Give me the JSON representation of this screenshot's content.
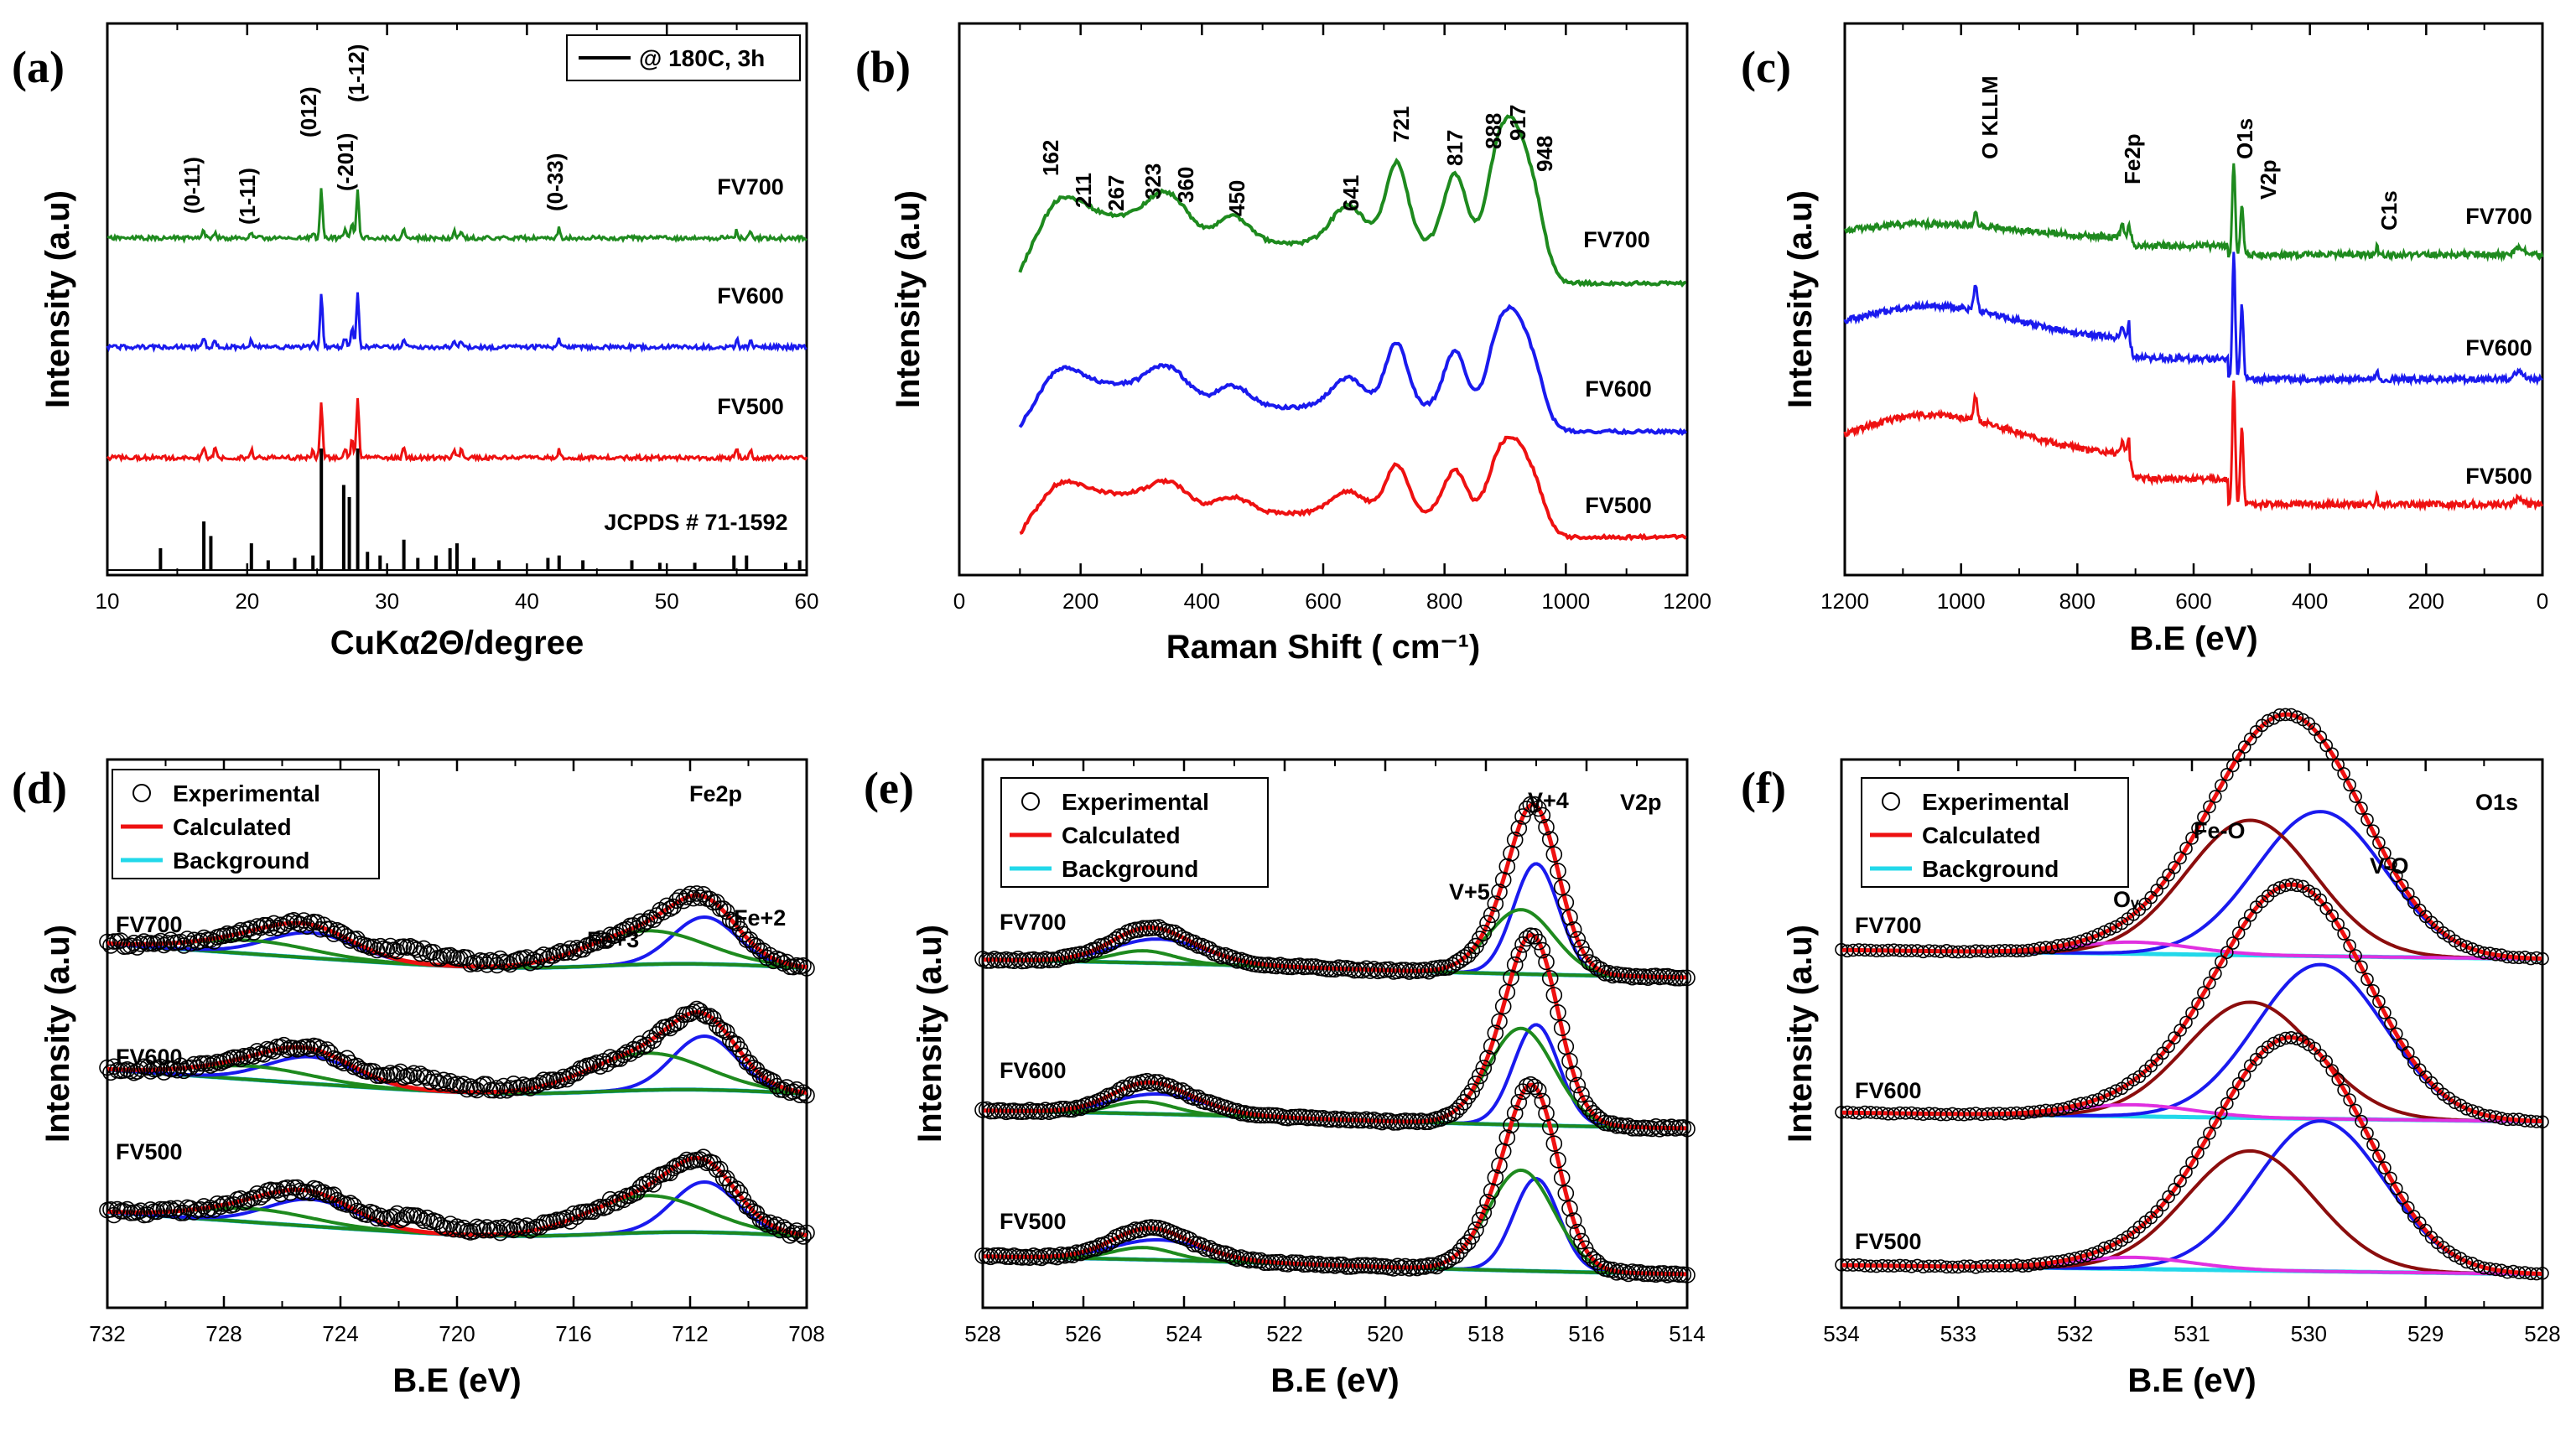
{
  "colors": {
    "FV700": "#1e8a1e",
    "FV600": "#1a1aee",
    "FV500": "#ee1111",
    "ref": "#000000",
    "experimental": "#000000",
    "calculated": "#ee1111",
    "background": "#22d8ea",
    "peakA": "#1a1aee",
    "peakB": "#1e8a1e",
    "peakC": "#8b0d0d",
    "peakD": "#e030e0"
  },
  "chart_data": [
    {
      "panel": "(a)",
      "type": "line",
      "xlabel": "CuKα2Θ/degree",
      "ylabel": "Intensity (a.u)",
      "xlim": [
        10,
        60
      ],
      "xticks": [
        10,
        20,
        30,
        40,
        50,
        60
      ],
      "legend": {
        "label": "@ 180C, 3h",
        "position": "top-right"
      },
      "series": [
        {
          "name": "FV700",
          "peaks": [
            [
              16.9,
              6
            ],
            [
              17.7,
              5
            ],
            [
              20.3,
              5
            ],
            [
              24.7,
              5
            ],
            [
              25.3,
              38
            ],
            [
              27.0,
              6
            ],
            [
              27.5,
              12
            ],
            [
              27.9,
              38
            ],
            [
              31.2,
              7
            ],
            [
              34.8,
              6
            ],
            [
              35.3,
              6
            ],
            [
              42.3,
              8
            ],
            [
              55.0,
              6
            ],
            [
              56.0,
              6
            ]
          ]
        },
        {
          "name": "FV600",
          "peaks": [
            [
              16.9,
              7
            ],
            [
              17.7,
              6
            ],
            [
              20.3,
              6
            ],
            [
              24.7,
              5
            ],
            [
              25.3,
              42
            ],
            [
              27.0,
              7
            ],
            [
              27.5,
              14
            ],
            [
              27.9,
              42
            ],
            [
              31.2,
              7
            ],
            [
              34.8,
              6
            ],
            [
              35.3,
              6
            ],
            [
              42.3,
              6
            ],
            [
              55.0,
              6
            ],
            [
              56.0,
              6
            ]
          ]
        },
        {
          "name": "FV500",
          "peaks": [
            [
              16.9,
              8
            ],
            [
              17.7,
              7
            ],
            [
              20.3,
              6
            ],
            [
              24.7,
              5
            ],
            [
              25.3,
              42
            ],
            [
              27.0,
              7
            ],
            [
              27.5,
              14
            ],
            [
              27.9,
              45
            ],
            [
              31.2,
              7
            ],
            [
              34.8,
              6
            ],
            [
              35.3,
              6
            ],
            [
              42.3,
              6
            ],
            [
              55.0,
              6
            ],
            [
              56.0,
              6
            ]
          ]
        },
        {
          "name": "JCPDS # 71-1592",
          "sticks": [
            [
              13.8,
              18
            ],
            [
              16.9,
              40
            ],
            [
              17.4,
              28
            ],
            [
              20.3,
              22
            ],
            [
              21.5,
              8
            ],
            [
              23.4,
              10
            ],
            [
              24.7,
              12
            ],
            [
              25.3,
              100
            ],
            [
              26.9,
              70
            ],
            [
              27.3,
              60
            ],
            [
              27.9,
              100
            ],
            [
              28.6,
              15
            ],
            [
              29.5,
              12
            ],
            [
              31.2,
              25
            ],
            [
              32.2,
              10
            ],
            [
              33.5,
              12
            ],
            [
              34.5,
              18
            ],
            [
              35.0,
              22
            ],
            [
              36.2,
              10
            ],
            [
              38.0,
              8
            ],
            [
              41.5,
              10
            ],
            [
              42.3,
              12
            ],
            [
              44.0,
              8
            ],
            [
              47.5,
              8
            ],
            [
              49.5,
              6
            ],
            [
              52.0,
              6
            ],
            [
              54.8,
              12
            ],
            [
              55.7,
              12
            ],
            [
              58.5,
              6
            ],
            [
              59.5,
              8
            ]
          ]
        }
      ],
      "annotations": [
        "(0-11)",
        "(1-11)",
        "(012)",
        "(-201)",
        "(1-12)",
        "(0-33)"
      ]
    },
    {
      "panel": "(b)",
      "type": "line",
      "xlabel": "Raman Shift ( cm⁻¹)",
      "ylabel": "Intensity (a.u)",
      "xlim": [
        0,
        1200
      ],
      "xticks": [
        0,
        200,
        400,
        600,
        800,
        1000,
        1200
      ],
      "peak_labels": [
        "162",
        "211",
        "267",
        "323",
        "360",
        "450",
        "641",
        "721",
        "817",
        "888",
        "917",
        "948"
      ],
      "series": [
        {
          "name": "FV700",
          "peaks": [
            [
              162,
              30
            ],
            [
              211,
              20
            ],
            [
              267,
              15
            ],
            [
              323,
              25
            ],
            [
              360,
              22
            ],
            [
              450,
              20
            ],
            [
              641,
              28
            ],
            [
              721,
              60
            ],
            [
              817,
              52
            ],
            [
              888,
              62
            ],
            [
              917,
              65
            ],
            [
              948,
              40
            ]
          ]
        },
        {
          "name": "FV600",
          "peaks": [
            [
              162,
              26
            ],
            [
              211,
              16
            ],
            [
              267,
              13
            ],
            [
              323,
              20
            ],
            [
              360,
              18
            ],
            [
              450,
              16
            ],
            [
              641,
              22
            ],
            [
              721,
              48
            ],
            [
              817,
              42
            ],
            [
              888,
              48
            ],
            [
              917,
              52
            ],
            [
              948,
              32
            ]
          ]
        },
        {
          "name": "FV500",
          "peaks": [
            [
              162,
              20
            ],
            [
              211,
              14
            ],
            [
              267,
              11
            ],
            [
              323,
              15
            ],
            [
              360,
              14
            ],
            [
              450,
              12
            ],
            [
              641,
              16
            ],
            [
              721,
              36
            ],
            [
              817,
              32
            ],
            [
              888,
              36
            ],
            [
              917,
              40
            ],
            [
              948,
              26
            ]
          ]
        }
      ]
    },
    {
      "panel": "(c)",
      "type": "line",
      "xlabel": "B.E (eV)",
      "ylabel": "Intensity (a.u)",
      "xlim": [
        1200,
        0
      ],
      "xticks": [
        1200,
        1000,
        800,
        600,
        400,
        200,
        0
      ],
      "peak_labels": [
        "O KLLM",
        "Fe2p",
        "O1s",
        "V2p",
        "C1s"
      ],
      "series": [
        {
          "name": "FV700"
        },
        {
          "name": "FV600"
        },
        {
          "name": "FV500"
        }
      ]
    },
    {
      "panel": "(d)",
      "type": "line",
      "title": "Fe2p",
      "xlabel": "B.E (eV)",
      "ylabel": "Intensity (a.u)",
      "xlim": [
        732,
        708
      ],
      "xticks": [
        732,
        728,
        724,
        720,
        716,
        712,
        708
      ],
      "legend": [
        "Experimental",
        "Calculated",
        "Background"
      ],
      "peak_labels": [
        "Fe+3",
        "Fe+2"
      ],
      "series": [
        {
          "name": "FV700",
          "components": [
            [
              711.5,
              1.1,
              28
            ],
            [
              713.5,
              2.0,
              20
            ],
            [
              725.0,
              1.5,
              15
            ],
            [
              727.0,
              2.0,
              8
            ]
          ]
        },
        {
          "name": "FV600",
          "components": [
            [
              711.5,
              1.1,
              32
            ],
            [
              713.5,
              2.0,
              22
            ],
            [
              725.0,
              1.5,
              16
            ],
            [
              727.0,
              2.0,
              8
            ]
          ]
        },
        {
          "name": "FV500",
          "components": [
            [
              711.5,
              1.1,
              30
            ],
            [
              713.5,
              2.0,
              22
            ],
            [
              725.0,
              1.5,
              16
            ],
            [
              727.0,
              2.0,
              8
            ]
          ]
        }
      ]
    },
    {
      "panel": "(e)",
      "type": "line",
      "title": "V2p",
      "xlabel": "B.E (eV)",
      "ylabel": "Intensity (a.u)",
      "xlim": [
        528,
        514
      ],
      "xticks": [
        528,
        526,
        524,
        522,
        520,
        518,
        516,
        514
      ],
      "legend": [
        "Experimental",
        "Calculated",
        "Background"
      ],
      "peak_labels": [
        "V+5",
        "V+4"
      ],
      "series": [
        {
          "name": "FV700",
          "components": [
            [
              517.0,
              0.45,
              55
            ],
            [
              517.3,
              0.65,
              32
            ],
            [
              524.5,
              0.9,
              12
            ],
            [
              524.8,
              0.6,
              6
            ]
          ]
        },
        {
          "name": "FV600",
          "components": [
            [
              517.0,
              0.45,
              50
            ],
            [
              517.3,
              0.65,
              48
            ],
            [
              524.5,
              0.9,
              10
            ],
            [
              524.8,
              0.6,
              6
            ]
          ]
        },
        {
          "name": "FV500",
          "components": [
            [
              517.0,
              0.45,
              46
            ],
            [
              517.3,
              0.65,
              50
            ],
            [
              524.5,
              0.9,
              10
            ],
            [
              524.8,
              0.6,
              6
            ]
          ]
        }
      ]
    },
    {
      "panel": "(f)",
      "type": "line",
      "title": "O1s",
      "xlabel": "B.E (eV)",
      "ylabel": "Intensity (a.u)",
      "xlim": [
        534,
        528
      ],
      "xticks": [
        534,
        533,
        532,
        531,
        530,
        529,
        528
      ],
      "legend": [
        "Experimental",
        "Calculated",
        "Background"
      ],
      "peak_labels": [
        "Oᵥ",
        "Fe-O",
        "V-O"
      ],
      "series": [
        {
          "name": "FV700",
          "components": [
            [
              529.9,
              0.55,
              75
            ],
            [
              530.5,
              0.55,
              70
            ],
            [
              531.5,
              0.5,
              6
            ]
          ]
        },
        {
          "name": "FV600",
          "components": [
            [
              529.9,
              0.55,
              80
            ],
            [
              530.5,
              0.55,
              60
            ],
            [
              531.5,
              0.5,
              6
            ]
          ]
        },
        {
          "name": "FV500",
          "components": [
            [
              529.9,
              0.55,
              78
            ],
            [
              530.5,
              0.55,
              62
            ],
            [
              531.5,
              0.5,
              6
            ]
          ]
        }
      ]
    }
  ]
}
